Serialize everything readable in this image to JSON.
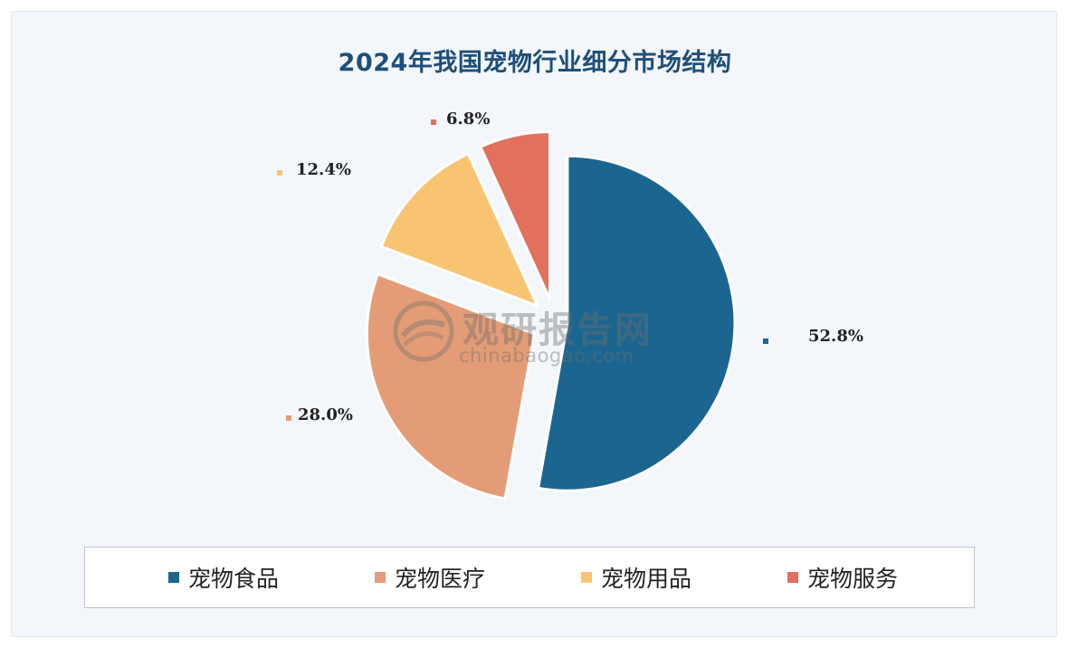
{
  "chart_data": {
    "type": "pie",
    "title": "2024年我国宠物行业细分市场结构",
    "series": [
      {
        "name": "宠物食品",
        "value": 52.8,
        "label": "52.8%",
        "color": "#1b6690"
      },
      {
        "name": "宠物医疗",
        "value": 28.0,
        "label": "28.0%",
        "color": "#e39c76"
      },
      {
        "name": "宠物用品",
        "value": 12.4,
        "label": "12.4%",
        "color": "#f9c472"
      },
      {
        "name": "宠物服务",
        "value": 6.8,
        "label": "6.8%",
        "color": "#e1705d"
      }
    ],
    "legend_position": "bottom"
  },
  "watermark": {
    "name": "观研报告网",
    "url": "chinabaogao.com"
  },
  "colors": {
    "background": "#f3f6fa",
    "title": "#1e4f7a"
  }
}
